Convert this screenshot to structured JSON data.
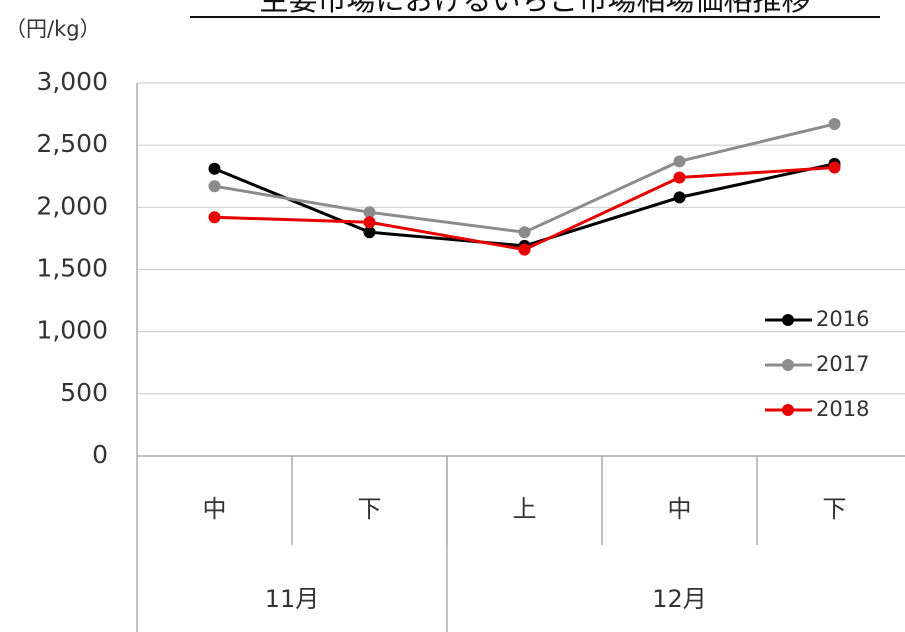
{
  "chart_data": {
    "type": "line",
    "title": "主要市場におけるいちご市場相場価格推移",
    "y_label": "（円/kg）",
    "categories": [
      "中",
      "下",
      "上",
      "中",
      "下"
    ],
    "category_groups": [
      {
        "label": "11月",
        "span": 2
      },
      {
        "label": "12月",
        "span": 3
      }
    ],
    "series": [
      {
        "name": "2016",
        "color": "#000000",
        "values": [
          2310,
          1800,
          1690,
          2080,
          2350
        ]
      },
      {
        "name": "2017",
        "color": "#8c8c8c",
        "values": [
          2170,
          1960,
          1800,
          2370,
          2670
        ]
      },
      {
        "name": "2018",
        "color": "#e60000",
        "values": [
          1920,
          1880,
          1660,
          2240,
          2320
        ]
      }
    ],
    "ylim": [
      0,
      3000
    ],
    "yticks": [
      0,
      500,
      {
        "value": 1000,
        "label": "1,000"
      },
      {
        "value": 1500,
        "label": "1,500"
      },
      {
        "value": 2000,
        "label": "2,000"
      },
      {
        "value": 2500,
        "label": "2,500"
      },
      {
        "value": 3000,
        "label": "3,000"
      }
    ],
    "grid": true,
    "legend": "right"
  }
}
